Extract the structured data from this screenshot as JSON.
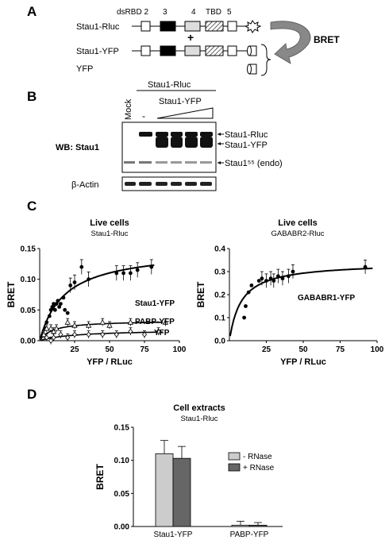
{
  "panels": {
    "A": {
      "letter": "A",
      "domain_labels": [
        "dsRBD 2",
        "3",
        "4",
        "TBD",
        "5"
      ],
      "construct_rluc": "Stau1-Rluc",
      "construct_yfp": "Stau1-YFP",
      "construct_yfp_only": "YFP",
      "plus": "+",
      "bret_label": "BRET"
    },
    "B": {
      "letter": "B",
      "header_rluc": "Stau1-Rluc",
      "header_yfp": "Stau1-YFP",
      "mock_label": "Mock",
      "minus_label": "-",
      "wb_label": "WB: Stau1",
      "band_labels": [
        "Stau1-Rluc",
        "Stau1-YFP",
        "Stau1⁵⁵ (endo)"
      ],
      "actin_label": "β-Actin"
    },
    "C": {
      "letter": "C",
      "left_title": "Live cells",
      "left_subtitle": "Stau1-Rluc",
      "right_title": "Live cells",
      "right_subtitle": "GABABR2-Rluc"
    },
    "D": {
      "letter": "D",
      "title": "Cell extracts",
      "subtitle": "Stau1-Rluc",
      "legend_minus": "- RNase",
      "legend_plus": "+ RNase"
    }
  },
  "chart_data": [
    {
      "id": "C-left",
      "type": "scatter",
      "xlabel": "YFP / RLuc",
      "ylabel": "BRET",
      "xlim": [
        0,
        100
      ],
      "ylim": [
        0,
        0.15
      ],
      "x_ticks": [
        25,
        50,
        75,
        100
      ],
      "y_ticks": [
        0.0,
        0.05,
        0.1,
        0.15
      ],
      "series": [
        {
          "name": "Stau1-YFP",
          "marker": "filled-circle",
          "points": [
            [
              4,
              0.02
            ],
            [
              5,
              0.03
            ],
            [
              7,
              0.04
            ],
            [
              8,
              0.05
            ],
            [
              9,
              0.055
            ],
            [
              10,
              0.06
            ],
            [
              11,
              0.05
            ],
            [
              12,
              0.06
            ],
            [
              13,
              0.065
            ],
            [
              14,
              0.055
            ],
            [
              15,
              0.06
            ],
            [
              17,
              0.07
            ],
            [
              18,
              0.05
            ],
            [
              20,
              0.045
            ],
            [
              22,
              0.09
            ],
            [
              25,
              0.095
            ],
            [
              30,
              0.12
            ],
            [
              35,
              0.1
            ],
            [
              55,
              0.11
            ],
            [
              60,
              0.11
            ],
            [
              65,
              0.11
            ],
            [
              70,
              0.115
            ],
            [
              80,
              0.12
            ]
          ],
          "fit": {
            "bmax": 0.15,
            "k": 18
          }
        },
        {
          "name": "PABP-YFP",
          "marker": "open-triangle",
          "points": [
            [
              3,
              0.01
            ],
            [
              5,
              0.02
            ],
            [
              8,
              0.02
            ],
            [
              10,
              0.015
            ],
            [
              12,
              0.02
            ],
            [
              20,
              0.03
            ],
            [
              25,
              0.025
            ],
            [
              35,
              0.025
            ],
            [
              45,
              0.03
            ],
            [
              50,
              0.025
            ],
            [
              65,
              0.03
            ],
            [
              90,
              0.03
            ]
          ],
          "fit": {
            "bmax": 0.033,
            "k": 9
          }
        },
        {
          "name": "YFP",
          "marker": "open-diamond",
          "points": [
            [
              5,
              0.005
            ],
            [
              8,
              0.0
            ],
            [
              10,
              0.005
            ],
            [
              15,
              0.01
            ],
            [
              20,
              0.005
            ],
            [
              25,
              0.01
            ],
            [
              35,
              0.01
            ],
            [
              45,
              0.01
            ],
            [
              55,
              0.01
            ],
            [
              65,
              0.015
            ],
            [
              75,
              0.01
            ],
            [
              85,
              0.015
            ]
          ],
          "fit": {
            "bmax": 0.018,
            "k": 25
          }
        }
      ]
    },
    {
      "id": "C-right",
      "type": "scatter",
      "xlabel": "YFP / RLuc",
      "ylabel": "BRET",
      "xlim": [
        0,
        100
      ],
      "ylim": [
        0,
        0.4
      ],
      "x_ticks": [
        25,
        50,
        75,
        100
      ],
      "y_ticks": [
        0.0,
        0.1,
        0.2,
        0.3,
        0.4
      ],
      "series": [
        {
          "name": "GABABR1-YFP",
          "marker": "filled-circle",
          "points": [
            [
              10,
              0.1
            ],
            [
              11,
              0.15
            ],
            [
              13,
              0.21
            ],
            [
              15,
              0.24
            ],
            [
              20,
              0.26
            ],
            [
              22,
              0.27
            ],
            [
              25,
              0.26
            ],
            [
              28,
              0.27
            ],
            [
              30,
              0.26
            ],
            [
              33,
              0.28
            ],
            [
              36,
              0.27
            ],
            [
              40,
              0.28
            ],
            [
              43,
              0.3
            ],
            [
              92,
              0.32
            ]
          ],
          "fit": {
            "bmax": 0.34,
            "k": 8
          }
        }
      ]
    },
    {
      "id": "D",
      "type": "bar",
      "ylabel": "BRET",
      "ylim": [
        0,
        0.15
      ],
      "y_ticks": [
        0.0,
        0.05,
        0.1,
        0.15
      ],
      "categories": [
        "Stau1-YFP",
        "PABP-YFP"
      ],
      "series": [
        {
          "name": "- RNase",
          "color": "#cccccc",
          "values": [
            0.11,
            0.002
          ],
          "errors": [
            0.02,
            0.006
          ]
        },
        {
          "name": "+ RNase",
          "color": "#666666",
          "values": [
            0.103,
            0.002
          ],
          "errors": [
            0.018,
            0.004
          ]
        }
      ]
    }
  ]
}
